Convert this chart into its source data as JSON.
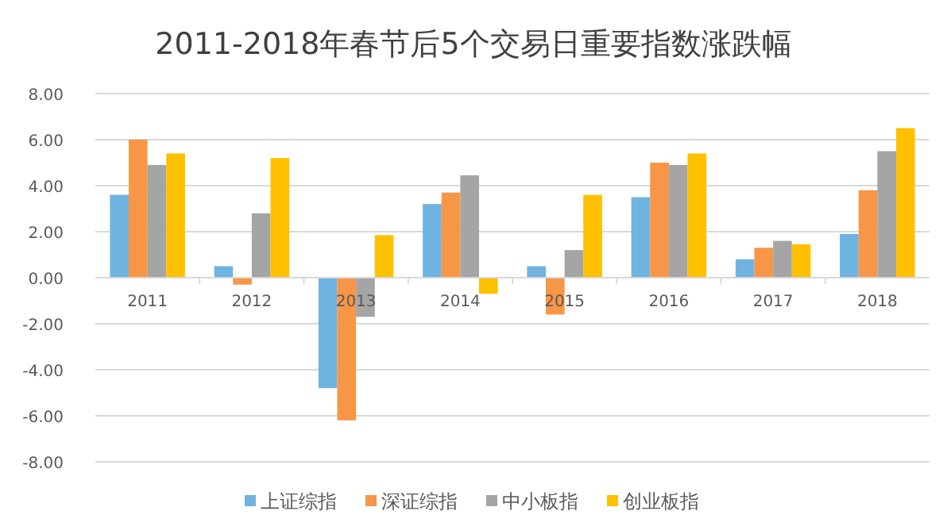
{
  "chart_data": {
    "type": "bar",
    "title": "2011-2018年春节后5个交易日重要指数涨跌幅",
    "categories": [
      "2011",
      "2012",
      "2013",
      "2014",
      "2015",
      "2016",
      "2017",
      "2018"
    ],
    "series": [
      {
        "name": "上证综指",
        "color": "#6fb3e0",
        "values": [
          3.6,
          0.5,
          -4.8,
          3.2,
          0.5,
          3.5,
          0.8,
          1.9
        ]
      },
      {
        "name": "深证综指",
        "color": "#f79646",
        "values": [
          6.0,
          -0.3,
          -6.2,
          3.7,
          -1.6,
          5.0,
          1.3,
          3.8
        ]
      },
      {
        "name": "中小板指",
        "color": "#a5a5a5",
        "values": [
          4.9,
          2.8,
          -1.7,
          4.45,
          1.2,
          4.9,
          1.6,
          5.5
        ]
      },
      {
        "name": "创业板指",
        "color": "#ffc000",
        "values": [
          5.4,
          5.2,
          1.85,
          -0.7,
          3.6,
          5.4,
          1.45,
          6.5
        ]
      }
    ],
    "ylim": [
      -8,
      8
    ],
    "yticks": [
      {
        "value": -8,
        "label": "-8.00"
      },
      {
        "value": -6,
        "label": "-6.00"
      },
      {
        "value": -4,
        "label": "-4.00"
      },
      {
        "value": -2,
        "label": "-2.00"
      },
      {
        "value": 0,
        "label": "0.00"
      },
      {
        "value": 2,
        "label": "2.00"
      },
      {
        "value": 4,
        "label": "4.00"
      },
      {
        "value": 6,
        "label": "6.00"
      },
      {
        "value": 8,
        "label": "8.00"
      }
    ],
    "grid": "y",
    "legend": "bottom"
  }
}
